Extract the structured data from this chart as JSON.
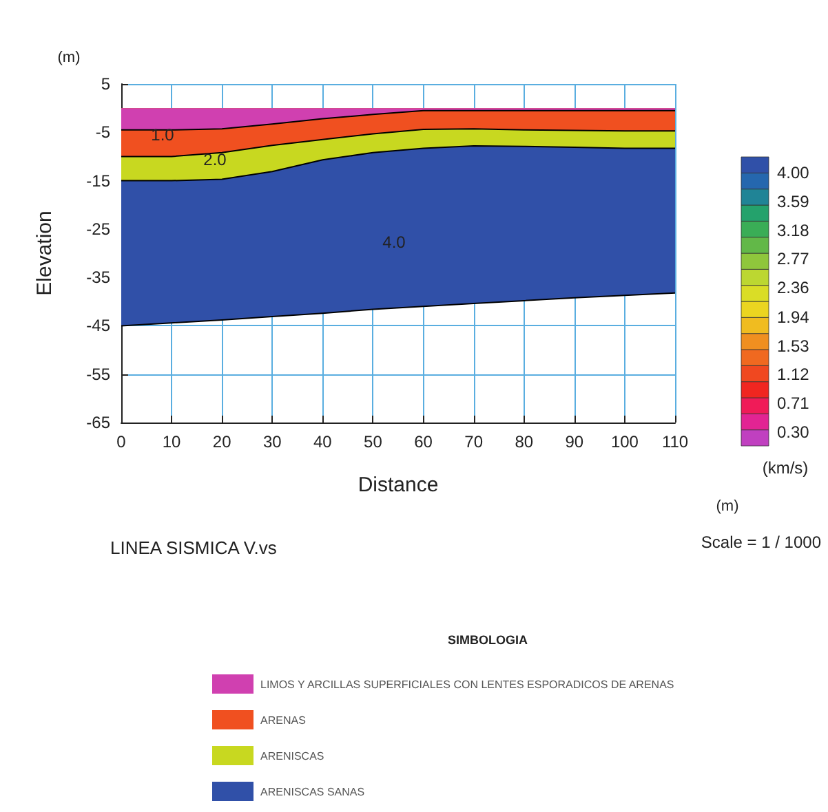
{
  "chart_data": {
    "type": "area",
    "stacked": true,
    "xlabel": "Distance",
    "ylabel": "Elevation",
    "legend_title": "SIMBOLOGIA",
    "clabel": "(km/s)",
    "x": [
      0,
      10,
      20,
      30,
      40,
      50,
      60,
      70,
      80,
      90,
      100,
      110
    ],
    "series": [
      {
        "name": "LIMOS Y ARCILLAS SUPERFICIALES CON LENTES ESPORADICOS DE ARENAS",
        "color": "#d040b0",
        "values": [
          -4.5,
          -4.5,
          -4.3,
          -3.3,
          -2.2,
          -1.3,
          -0.5,
          -0.5,
          -0.5,
          -0.5,
          -0.5,
          -0.5
        ]
      },
      {
        "name": "ARENAS",
        "color": "#f05020",
        "values": [
          -5.5,
          -5.5,
          -4.9,
          -4.4,
          -4.3,
          -4.0,
          -3.9,
          -3.8,
          -4.0,
          -4.1,
          -4.2,
          -4.2
        ]
      },
      {
        "name": "ARENISCAS",
        "color": "#c8d820",
        "values": [
          -5,
          -5,
          -5.5,
          -5.4,
          -4.2,
          -3.9,
          -3.9,
          -3.5,
          -3.4,
          -3.5,
          -3.6,
          -3.6
        ]
      },
      {
        "name": "ARENISCAS SANAS",
        "color": "#3050a8",
        "values": [
          -30,
          -29.4,
          -29.1,
          -30,
          -31.7,
          -32.4,
          -32.7,
          -32.6,
          -31.9,
          -31.1,
          -30.4,
          -29.9
        ]
      }
    ],
    "xlim": [
      0,
      110
    ],
    "xticks": [
      0,
      10,
      20,
      30,
      40,
      50,
      60,
      70,
      80,
      90,
      100,
      110
    ],
    "ylim": [
      -65,
      5
    ],
    "yticks": [
      5,
      -5,
      -15,
      -25,
      -35,
      -45,
      -55,
      -65
    ],
    "clim": [
      0.1,
      4.23
    ],
    "cticks": [
      {
        "value": 0.3,
        "label": "0.30"
      },
      0.71,
      1.12,
      1.53,
      1.94,
      2.36,
      2.77,
      3.18,
      3.59,
      {
        "value": 4,
        "label": "4.00"
      }
    ],
    "grid": true,
    "legend": "bottom",
    "annotations": [
      "1.0",
      "2.0",
      "4.0",
      "(m)",
      "LINEA SISMICA V.vs",
      "(m)",
      "Scale = 1 / 1000"
    ]
  }
}
